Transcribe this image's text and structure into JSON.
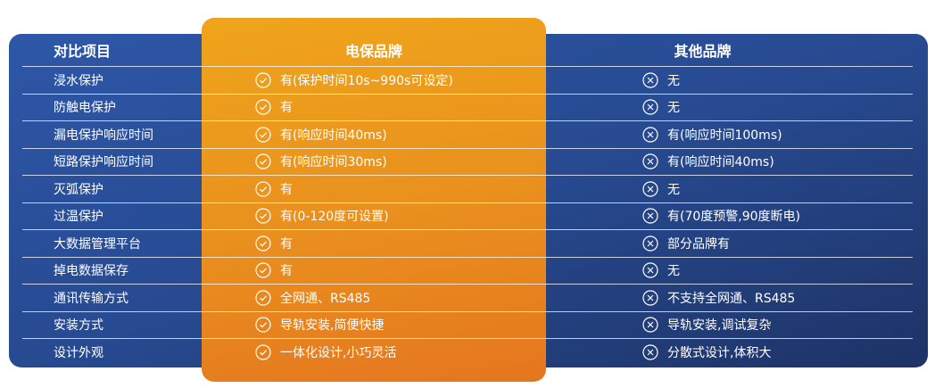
{
  "headers": {
    "item": "对比项目",
    "ours": "电保品牌",
    "other": "其他品牌"
  },
  "colors": {
    "panel_blue": "#2e57a8",
    "highlight_orange": "#efa51b"
  },
  "icons": {
    "ours": "check-circle-icon",
    "other": "x-circle-icon"
  },
  "rows": [
    {
      "item": "浸水保护",
      "ours": "有(保护时间10s~990s可设定)",
      "other": "无"
    },
    {
      "item": "防触电保护",
      "ours": "有",
      "other": "无"
    },
    {
      "item": "漏电保护响应时间",
      "ours": "有(响应时间40ms)",
      "other": "有(响应时间100ms)"
    },
    {
      "item": "短路保护响应时间",
      "ours": "有(响应时间30ms)",
      "other": "有(响应时间40ms)"
    },
    {
      "item": "灭弧保护",
      "ours": "有",
      "other": "无"
    },
    {
      "item": "过温保护",
      "ours": "有(0-120度可设置)",
      "other": "有(70度预警,90度断电)"
    },
    {
      "item": "大数据管理平台",
      "ours": "有",
      "other": "部分品牌有"
    },
    {
      "item": "掉电数据保存",
      "ours": "有",
      "other": "无"
    },
    {
      "item": "通讯传输方式",
      "ours": "全网通、RS485",
      "other": "不支持全网通、RS485"
    },
    {
      "item": "安装方式",
      "ours": "导轨安装,简便快捷",
      "other": "导轨安装,调试复杂"
    },
    {
      "item": "设计外观",
      "ours": "一体化设计,小巧灵活",
      "other": "分散式设计,体积大"
    }
  ]
}
